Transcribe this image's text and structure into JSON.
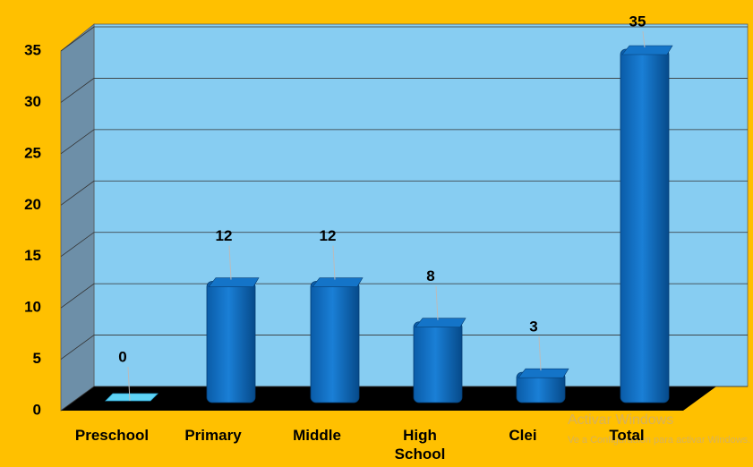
{
  "chart_data": {
    "type": "bar3d",
    "categories": [
      "Preschool",
      "Primary",
      "Middle",
      "High School",
      "Clei",
      "Total"
    ],
    "values": [
      0,
      12,
      12,
      8,
      3,
      35
    ],
    "color": "#0a6cc4",
    "ylim": [
      0,
      35
    ],
    "yticks": [
      0,
      5,
      10,
      15,
      20,
      25,
      30,
      35
    ],
    "grid": true,
    "watermark": {
      "title": "Activar Windows",
      "subtitle": "Ve a Configuración para activar Windows."
    }
  }
}
